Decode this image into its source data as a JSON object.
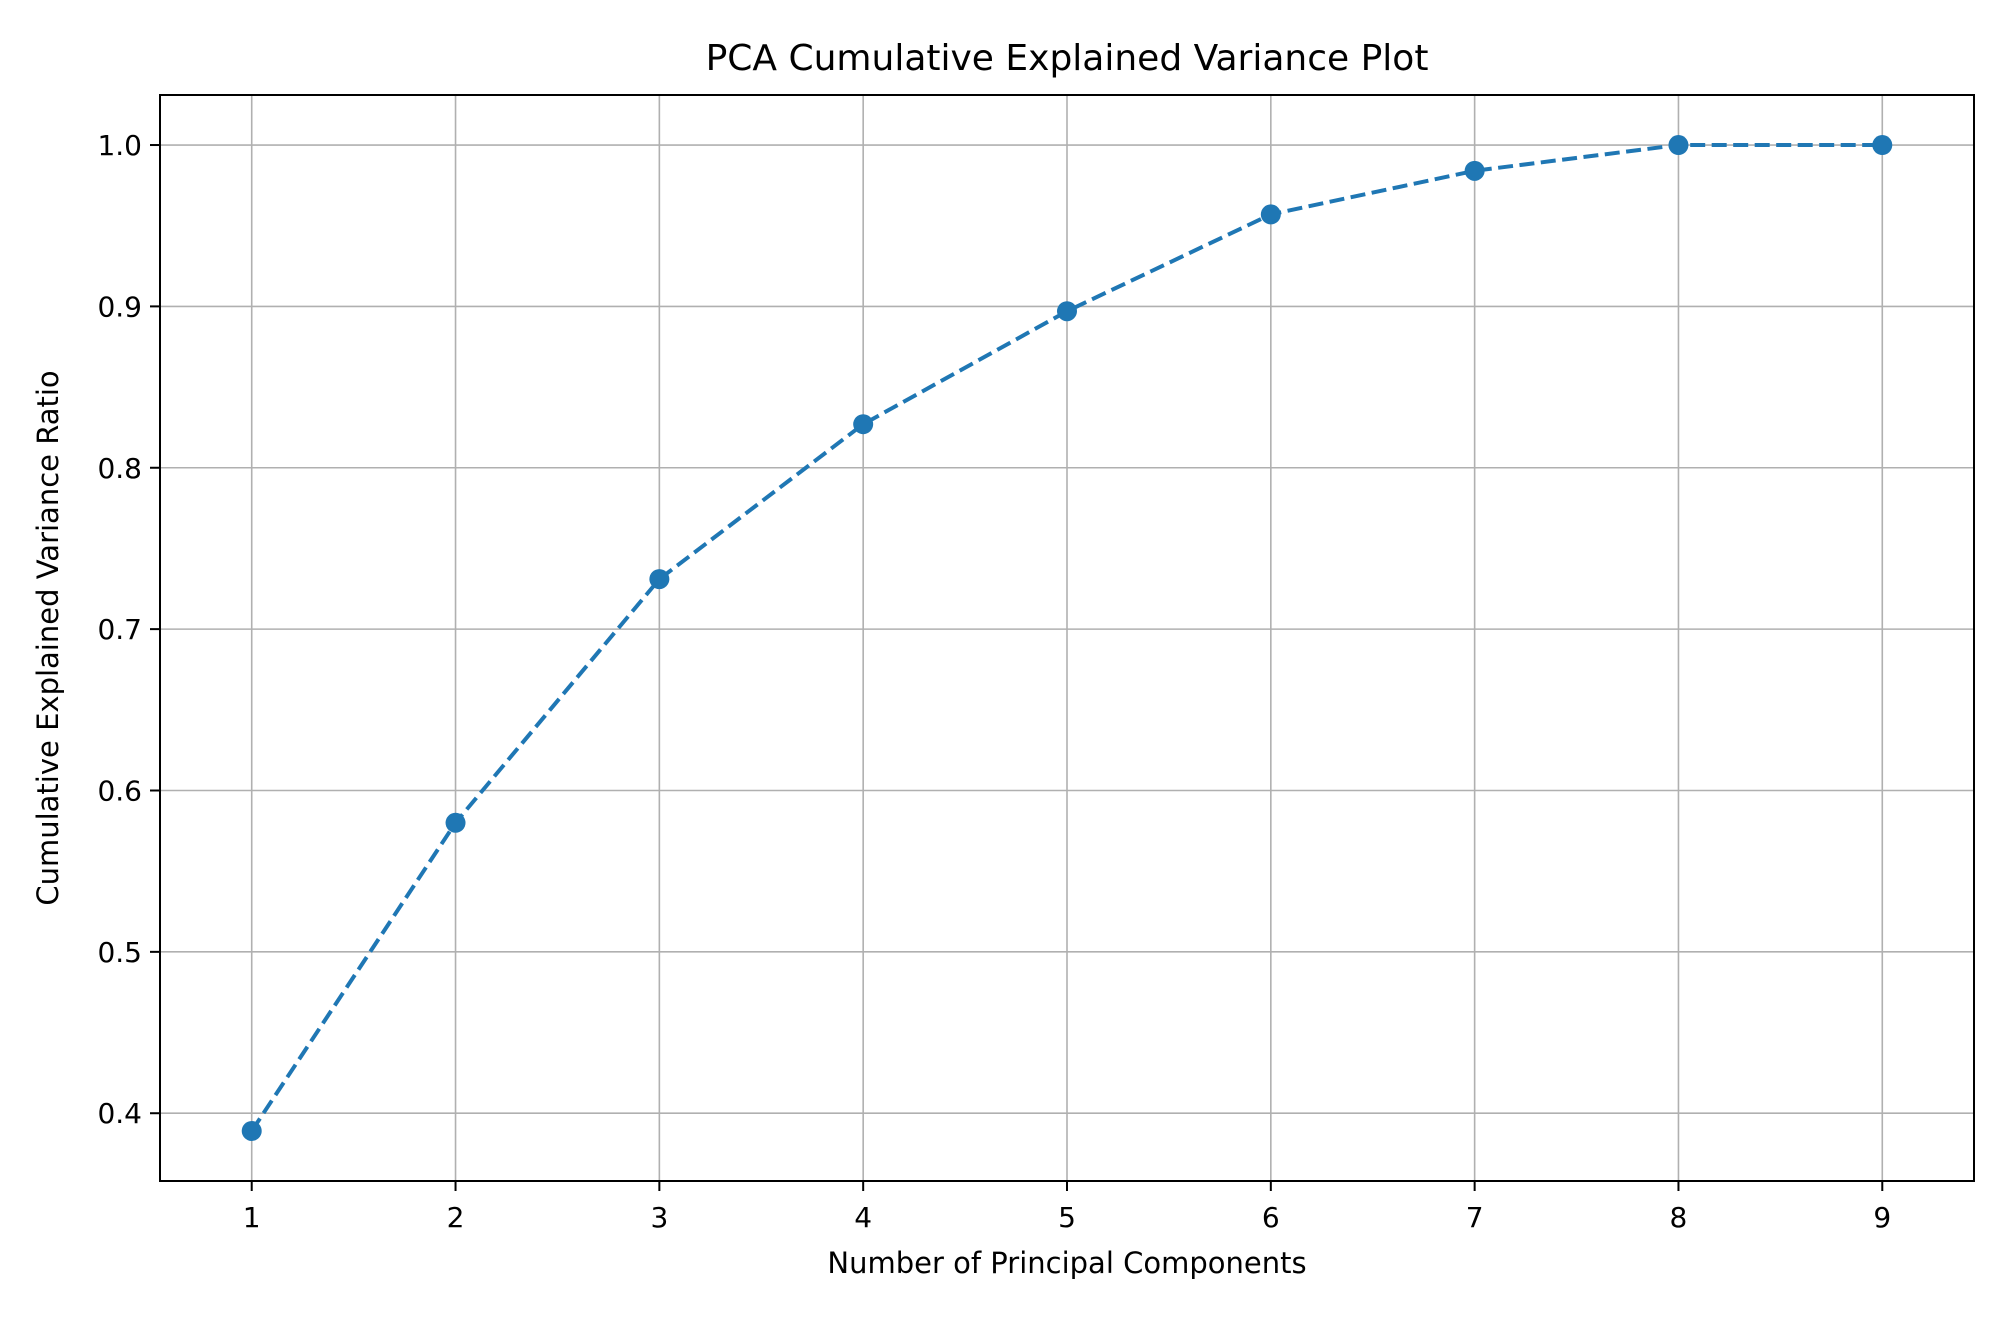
{
  "chart_data": {
    "type": "line",
    "title": "PCA Cumulative Explained Variance Plot",
    "xlabel": "Number of Principal Components",
    "ylabel": "Cumulative Explained Variance Ratio",
    "x": [
      1,
      2,
      3,
      4,
      5,
      6,
      7,
      8,
      9
    ],
    "series": [
      {
        "values": [
          0.389,
          0.58,
          0.731,
          0.827,
          0.897,
          0.957,
          0.984,
          1.0,
          1.0
        ],
        "color": "#1f77b4",
        "line_style": "dashed",
        "marker": "circle"
      }
    ],
    "xlim": [
      0.55,
      9.45
    ],
    "ylim": [
      0.358,
      1.031
    ],
    "xticks": [
      "1",
      "2",
      "3",
      "4",
      "5",
      "6",
      "7",
      "8",
      "9"
    ],
    "yticks": [
      "0.4",
      "0.5",
      "0.6",
      "0.7",
      "0.8",
      "0.9",
      "1.0"
    ],
    "grid": true,
    "grid_color": "#b0b0b0",
    "legend": "none"
  }
}
